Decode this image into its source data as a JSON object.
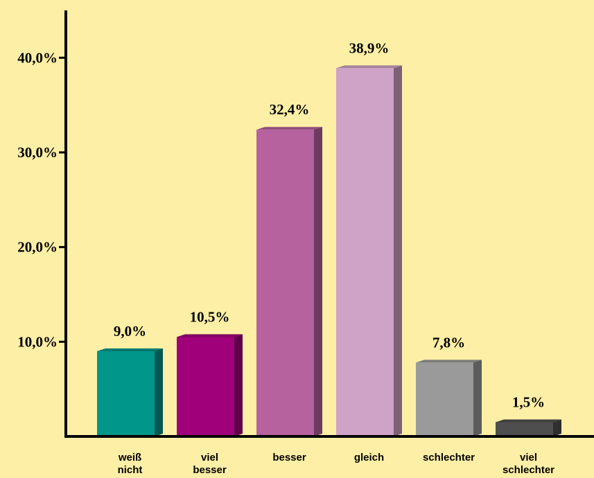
{
  "chart_data": {
    "type": "bar",
    "categories": [
      [
        "weiß",
        "nicht"
      ],
      [
        "viel",
        "besser"
      ],
      [
        "besser"
      ],
      [
        "gleich"
      ],
      [
        "schlechter"
      ],
      [
        "viel",
        "schlechter"
      ]
    ],
    "values": [
      9.0,
      10.5,
      32.4,
      38.9,
      7.8,
      1.5
    ],
    "value_labels": [
      "9,0%",
      "10,5%",
      "32,4%",
      "38,9%",
      "7,8%",
      "1,5%"
    ],
    "colors": [
      "#00968a",
      "#a0007a",
      "#b5629e",
      "#cfa3c7",
      "#9a9a9a",
      "#4e4e4e"
    ],
    "ylim": [
      0,
      45
    ],
    "yticks": [
      {
        "value": 10,
        "label": "10,0%"
      },
      {
        "value": 20,
        "label": "20,0%"
      },
      {
        "value": 30,
        "label": "30,0%"
      },
      {
        "value": 40,
        "label": "40,0%"
      }
    ]
  }
}
